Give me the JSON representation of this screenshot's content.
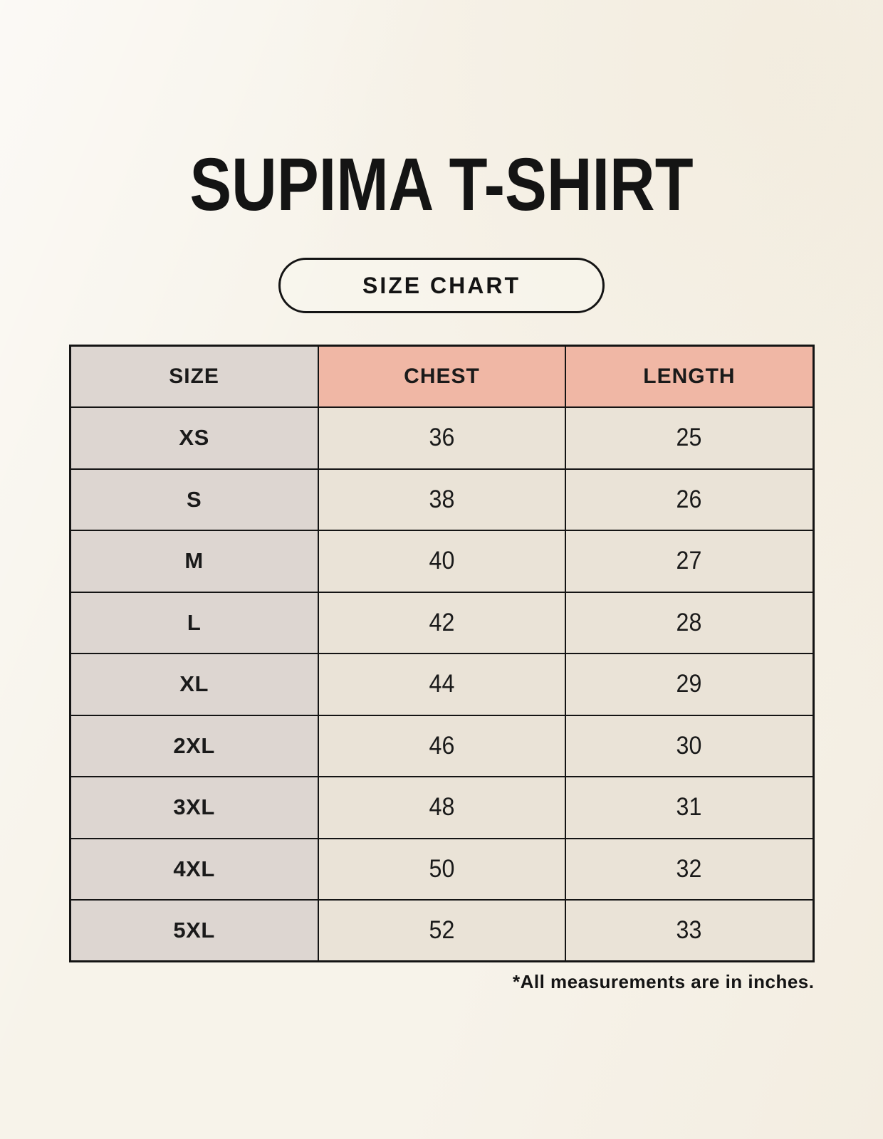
{
  "page": {
    "title": "SUPIMA T-SHIRT",
    "badge_label": "SIZE CHART",
    "footnote": "*All measurements are in inches."
  },
  "colors": {
    "background": "#f7f3ea",
    "header_accent": "#f0b7a5",
    "size_column": "#ddd6d1",
    "cell": "#eae3d7",
    "border": "#141414",
    "text": "#1a1a1a"
  },
  "chart_data": {
    "type": "table",
    "title": "SUPIMA T-SHIRT size chart",
    "units": "inches",
    "columns": [
      "SIZE",
      "CHEST",
      "LENGTH"
    ],
    "rows": [
      [
        "XS",
        "36",
        "25"
      ],
      [
        "S",
        "38",
        "26"
      ],
      [
        "M",
        "40",
        "27"
      ],
      [
        "L",
        "42",
        "28"
      ],
      [
        "XL",
        "44",
        "29"
      ],
      [
        "2XL",
        "46",
        "30"
      ],
      [
        "3XL",
        "48",
        "31"
      ],
      [
        "4XL",
        "50",
        "32"
      ],
      [
        "5XL",
        "52",
        "33"
      ]
    ]
  }
}
